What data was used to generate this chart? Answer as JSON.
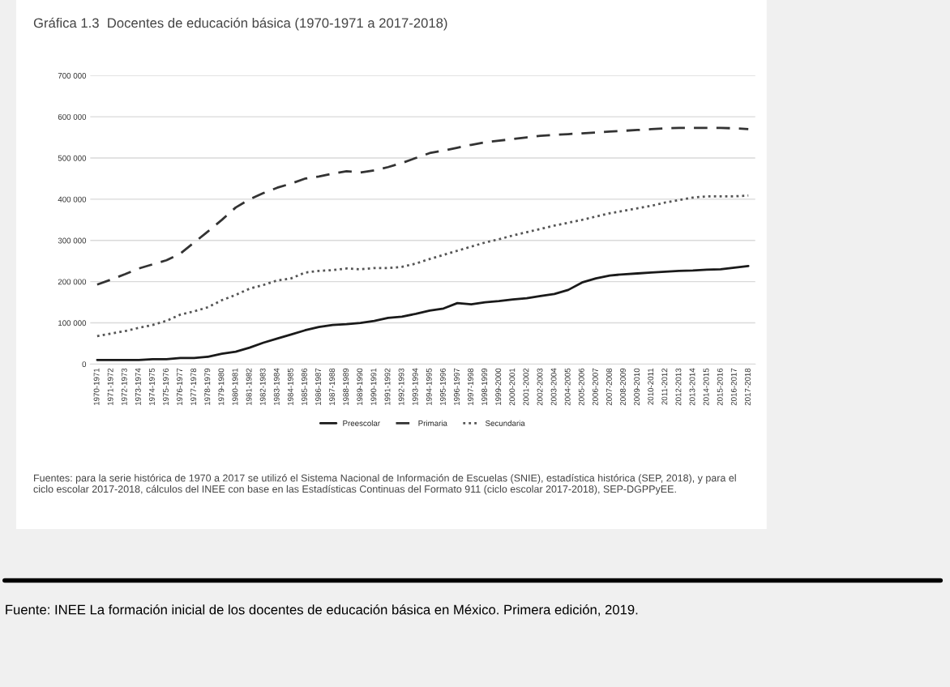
{
  "chart_data": {
    "type": "line",
    "title": "Gráfica 1.3  Docentes de educación básica (1970-1971 a 2017-2018)",
    "categories": [
      "1970-1971",
      "1971-1972",
      "1972-1973",
      "1973-1974",
      "1974-1975",
      "1975-1976",
      "1976-1977",
      "1977-1978",
      "1978-1979",
      "1979-1980",
      "1980-1981",
      "1981-1982",
      "1982-1983",
      "1983-1984",
      "1984-1985",
      "1985-1986",
      "1986-1987",
      "1987-1988",
      "1988-1989",
      "1989-1990",
      "1990-1991",
      "1991-1992",
      "1992-1993",
      "1993-1994",
      "1994-1995",
      "1995-1996",
      "1996-1997",
      "1997-1998",
      "1998-1999",
      "1999-2000",
      "2000-2001",
      "2001-2002",
      "2002-2003",
      "2003-2004",
      "2004-2005",
      "2005-2006",
      "2006-2007",
      "2007-2008",
      "2008-2009",
      "2009-2010",
      "2010-2011",
      "2011-2012",
      "2012-2013",
      "2013-2014",
      "2014-2015",
      "2015-2016",
      "2016-2017",
      "2017-2018"
    ],
    "series": [
      {
        "name": "Preescolar",
        "color": "#1a1a1a",
        "line_style": "solid",
        "values": [
          10000,
          10000,
          10000,
          10000,
          12000,
          12000,
          15000,
          15000,
          18000,
          25000,
          30000,
          40000,
          52000,
          62000,
          72000,
          82000,
          90000,
          95000,
          97000,
          100000,
          105000,
          112000,
          115000,
          122000,
          130000,
          135000,
          148000,
          145000,
          150000,
          153000,
          157000,
          160000,
          165000,
          170000,
          180000,
          198000,
          208000,
          215000,
          218000,
          220000,
          222000,
          224000,
          226000,
          227000,
          229000,
          230000,
          234000,
          238000
        ]
      },
      {
        "name": "Primaria",
        "color": "#333333",
        "line_style": "dashed",
        "values": [
          193000,
          205000,
          218000,
          232000,
          242000,
          252000,
          268000,
          295000,
          322000,
          350000,
          380000,
          400000,
          415000,
          428000,
          438000,
          450000,
          455000,
          462000,
          468000,
          465000,
          470000,
          478000,
          488000,
          500000,
          512000,
          518000,
          525000,
          532000,
          538000,
          542000,
          546000,
          550000,
          554000,
          556000,
          558000,
          560000,
          562000,
          564000,
          566000,
          568000,
          570000,
          572000,
          573000,
          573000,
          573000,
          573000,
          572000,
          570000
        ]
      },
      {
        "name": "Secundaria",
        "color": "#555555",
        "line_style": "dotted",
        "values": [
          68000,
          74000,
          80000,
          88000,
          95000,
          105000,
          120000,
          128000,
          138000,
          155000,
          168000,
          183000,
          192000,
          203000,
          208000,
          222000,
          226000,
          228000,
          232000,
          230000,
          233000,
          233000,
          236000,
          244000,
          255000,
          265000,
          275000,
          285000,
          295000,
          303000,
          312000,
          320000,
          328000,
          336000,
          343000,
          350000,
          358000,
          366000,
          372000,
          378000,
          384000,
          392000,
          398000,
          404000,
          407000,
          407000,
          407000,
          409000
        ]
      }
    ],
    "ylim": [
      0,
      700000
    ],
    "yticks": [
      0,
      {
        "value": 100000,
        "label": "100 000"
      },
      {
        "value": 200000,
        "label": "200 000"
      },
      {
        "value": 300000,
        "label": "300 000"
      },
      {
        "value": 400000,
        "label": "400 000"
      },
      {
        "value": 500000,
        "label": "500 000"
      },
      {
        "value": 600000,
        "label": "600 000"
      },
      {
        "value": 700000,
        "label": "700 000"
      }
    ],
    "grid": "y",
    "legend": "bottom",
    "annotations": [
      "Fuentes: para la serie histórica de 1970 a 2017 se utilizó el Sistema Nacional de Información de Escuelas (SNIE), estadística histórica (SEP, 2018), y para el ciclo escolar 2017-2018, cálculos del INEE con base en las Estadísticas Continuas del Formato 911 (ciclo escolar 2017-2018), SEP-DGPPyEE.",
      "Fuente: INEE La formación inicial de los docentes de educación básica en México. Primera edición, 2019."
    ]
  }
}
